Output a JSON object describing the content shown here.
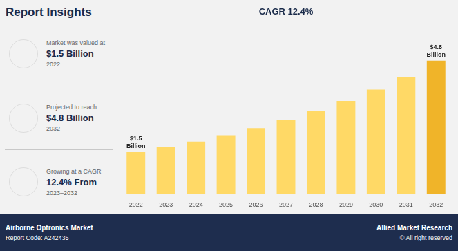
{
  "chart_data": {
    "type": "bar",
    "title": "Report Insights",
    "categories": [
      "2022",
      "2023",
      "2024",
      "2025",
      "2026",
      "2027",
      "2028",
      "2029",
      "2030",
      "2031",
      "2032"
    ],
    "values": [
      1.5,
      1.68,
      1.88,
      2.11,
      2.37,
      2.66,
      2.98,
      3.35,
      3.76,
      4.22,
      4.8
    ],
    "colors": [
      "#FFD966",
      "#FFD966",
      "#FFD966",
      "#FFD966",
      "#FFD966",
      "#FFD966",
      "#FFD966",
      "#FFD966",
      "#FFD966",
      "#FFD966",
      "#F0B429"
    ],
    "ylim": [
      0,
      6.2
    ],
    "tick_labels": "x",
    "grid": false,
    "data_labels": true,
    "value_labels": [
      "$1.5\nBillion",
      null,
      null,
      null,
      null,
      null,
      null,
      null,
      null,
      null,
      "$4.8\nBillion"
    ],
    "annotations": [
      "CAGR 12.4%"
    ],
    "insights": [
      {
        "label": "Market was valued at",
        "value": "$1.5 Billion",
        "year": "2022"
      },
      {
        "label": "Projected to reach",
        "value": "$4.8 Billion",
        "year": "2032"
      },
      {
        "label": "Growing at a CAGR",
        "value": "12.4% From",
        "year": "2023–2032"
      }
    ],
    "footer": {
      "left": [
        "Airborne Optronics Market",
        "Report Code: A242435"
      ],
      "right": [
        "Allied Market Research",
        "© All right reserved"
      ]
    }
  }
}
